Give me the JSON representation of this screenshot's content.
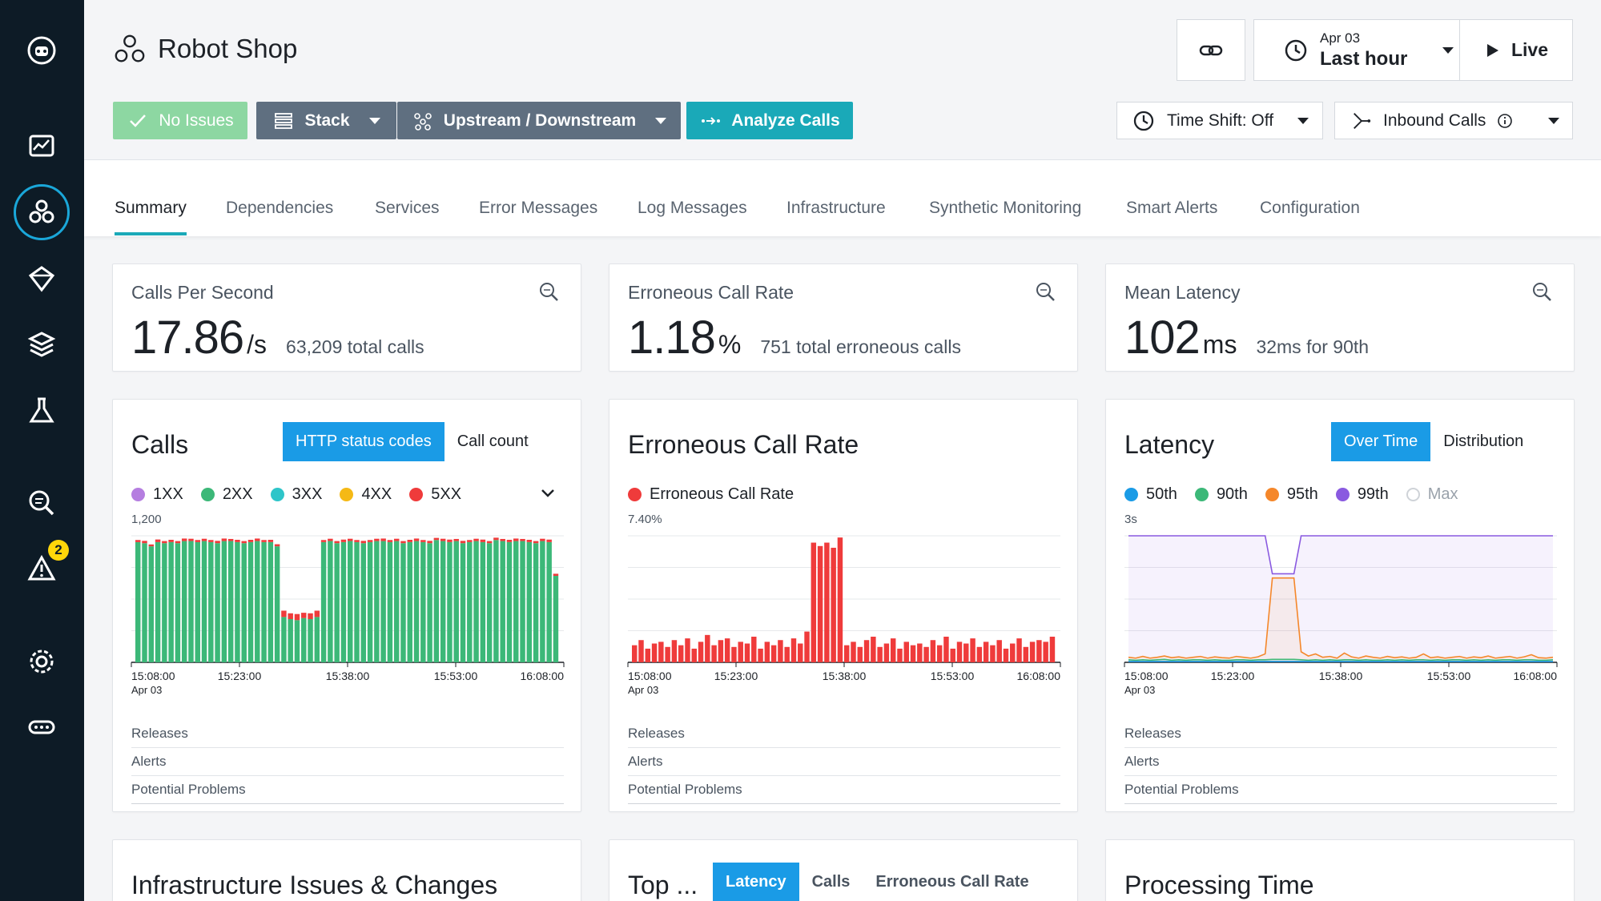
{
  "app": {
    "title": "Robot Shop"
  },
  "toolbar": {
    "no_issues": "No Issues",
    "stack": "Stack",
    "upstream_downstream": "Upstream / Downstream",
    "analyze_calls": "Analyze Calls",
    "time_date": "Apr 03",
    "time_range": "Last hour",
    "live": "Live",
    "time_shift": "Time Shift: Off",
    "inbound_calls": "Inbound Calls"
  },
  "sidebar": {
    "alerts_badge": "2"
  },
  "tabs": [
    "Summary",
    "Dependencies",
    "Services",
    "Error Messages",
    "Log Messages",
    "Infrastructure",
    "Synthetic Monitoring",
    "Smart Alerts",
    "Configuration"
  ],
  "kpis": [
    {
      "title": "Calls Per Second",
      "value": "17.86",
      "unit": "/s",
      "sub": "63,209 total calls"
    },
    {
      "title": "Erroneous Call Rate",
      "value": "1.18",
      "unit": "%",
      "sub": "751 total erroneous calls"
    },
    {
      "title": "Mean Latency",
      "value": "102",
      "unit": "ms",
      "sub": "32ms for 90th"
    }
  ],
  "cards": {
    "calls": {
      "title": "Calls",
      "seg_on": "HTTP status codes",
      "seg_off": "Call count",
      "legend": [
        {
          "label": "1XX",
          "color": "#b57ee0"
        },
        {
          "label": "2XX",
          "color": "#3cb878"
        },
        {
          "label": "3XX",
          "color": "#2ec5c9"
        },
        {
          "label": "4XX",
          "color": "#f5b915"
        },
        {
          "label": "5XX",
          "color": "#ef3b3b"
        }
      ]
    },
    "error": {
      "title": "Erroneous Call Rate",
      "legend": [
        {
          "label": "Erroneous Call Rate",
          "color": "#ef3b3b"
        }
      ]
    },
    "latency": {
      "title": "Latency",
      "seg_on": "Over Time",
      "seg_off": "Distribution",
      "legend": [
        {
          "label": "50th",
          "color": "#1a9be6"
        },
        {
          "label": "90th",
          "color": "#3cb878"
        },
        {
          "label": "95th",
          "color": "#f5872a"
        },
        {
          "label": "99th",
          "color": "#8a5ae0"
        },
        {
          "label": "Max",
          "color": "#cfd3d8"
        }
      ]
    }
  },
  "row_labels": [
    "Releases",
    "Alerts",
    "Potential Problems"
  ],
  "bottom": {
    "infra_title": "Infrastructure Issues & Changes",
    "top_title": "Top ...",
    "top_seg": [
      "Latency",
      "Calls",
      "Erroneous Call Rate"
    ],
    "processing_title": "Processing Time"
  },
  "chart_data": [
    {
      "type": "bar",
      "title": "Calls",
      "ylabel_top": "1,200",
      "x_ticks": [
        "15:08:00",
        "15:23:00",
        "15:38:00",
        "15:53:00",
        "16:08:00"
      ],
      "x_date": "Apr 03",
      "ylim": [
        0,
        1200
      ],
      "series": [
        {
          "name": "2XX",
          "values": [
            1140,
            1130,
            1100,
            1140,
            1130,
            1140,
            1130,
            1150,
            1150,
            1140,
            1150,
            1140,
            1130,
            1150,
            1150,
            1140,
            1130,
            1140,
            1150,
            1140,
            1140,
            1100,
            430,
            410,
            400,
            420,
            410,
            430,
            1140,
            1150,
            1130,
            1140,
            1150,
            1140,
            1130,
            1140,
            1150,
            1150,
            1140,
            1150,
            1130,
            1140,
            1150,
            1140,
            1130,
            1160,
            1150,
            1140,
            1150,
            1130,
            1140,
            1150,
            1140,
            1130,
            1160,
            1150,
            1140,
            1150,
            1150,
            1140,
            1130,
            1150,
            1140,
            820
          ]
        },
        {
          "name": "5XX",
          "values": [
            20,
            22,
            18,
            25,
            20,
            22,
            20,
            24,
            22,
            20,
            22,
            20,
            22,
            24,
            20,
            22,
            20,
            22,
            24,
            20,
            22,
            20,
            60,
            55,
            58,
            50,
            55,
            60,
            20,
            22,
            20,
            24,
            22,
            20,
            22,
            20,
            22,
            24,
            20,
            22,
            20,
            22,
            24,
            20,
            22,
            20,
            22,
            24,
            20,
            22,
            20,
            22,
            24,
            20,
            22,
            20,
            22,
            24,
            20,
            22,
            20,
            22,
            24,
            20
          ]
        }
      ]
    },
    {
      "type": "bar",
      "title": "Erroneous Call Rate",
      "ylabel_top": "7.40%",
      "x_ticks": [
        "15:08:00",
        "15:23:00",
        "15:38:00",
        "15:53:00",
        "16:08:00"
      ],
      "x_date": "Apr 03",
      "ylim": [
        0,
        7.4
      ],
      "series": [
        {
          "name": "Erroneous Call Rate",
          "values": [
            1.0,
            1.3,
            0.8,
            1.1,
            1.2,
            0.9,
            1.3,
            1.0,
            1.4,
            0.8,
            1.2,
            1.6,
            1.0,
            1.3,
            1.4,
            0.9,
            1.2,
            1.1,
            1.5,
            0.8,
            1.2,
            1.0,
            1.3,
            0.9,
            1.4,
            1.1,
            1.8,
            7.0,
            6.8,
            7.0,
            6.7,
            7.3,
            1.0,
            1.2,
            0.9,
            1.3,
            1.5,
            0.9,
            1.1,
            1.4,
            0.8,
            1.2,
            1.0,
            1.1,
            0.9,
            1.3,
            1.0,
            1.5,
            0.8,
            1.2,
            1.1,
            1.4,
            0.9,
            1.2,
            1.0,
            1.3,
            0.8,
            1.1,
            1.4,
            0.9,
            1.2,
            1.3,
            1.2,
            1.5
          ]
        }
      ]
    },
    {
      "type": "line",
      "title": "Latency",
      "ylabel_top": "3s",
      "x_ticks": [
        "15:08:00",
        "15:23:00",
        "15:38:00",
        "15:53:00",
        "16:08:00"
      ],
      "x_date": "Apr 03",
      "ylim": [
        0,
        3
      ],
      "series": [
        {
          "name": "99th",
          "values": [
            3.0,
            3.0,
            3.0,
            3.0,
            3.0,
            3.0,
            3.0,
            3.0,
            3.0,
            3.0,
            3.0,
            3.0,
            3.0,
            3.0,
            3.0,
            3.0,
            3.0,
            3.0,
            3.0,
            3.0,
            2.1,
            2.1,
            2.1,
            2.1,
            3.0,
            3.0,
            3.0,
            3.0,
            3.0,
            3.0,
            3.0,
            3.0,
            3.0,
            3.0,
            3.0,
            3.0,
            3.0,
            3.0,
            3.0,
            3.0,
            3.0,
            3.0,
            3.0,
            3.0,
            3.0,
            3.0,
            3.0,
            3.0,
            3.0,
            3.0,
            3.0,
            3.0,
            3.0,
            3.0,
            3.0,
            3.0,
            3.0,
            3.0,
            3.0,
            3.0
          ]
        },
        {
          "name": "95th",
          "values": [
            0.12,
            0.1,
            0.14,
            0.1,
            0.12,
            0.15,
            0.11,
            0.13,
            0.1,
            0.12,
            0.14,
            0.1,
            0.13,
            0.11,
            0.1,
            0.14,
            0.12,
            0.1,
            0.13,
            0.2,
            2.0,
            2.0,
            2.0,
            2.0,
            0.25,
            0.15,
            0.2,
            0.12,
            0.14,
            0.1,
            0.22,
            0.13,
            0.1,
            0.15,
            0.12,
            0.1,
            0.14,
            0.11,
            0.13,
            0.1,
            0.12,
            0.2,
            0.11,
            0.13,
            0.1,
            0.12,
            0.14,
            0.1,
            0.13,
            0.11,
            0.15,
            0.1,
            0.12,
            0.14,
            0.1,
            0.13,
            0.18,
            0.11,
            0.1,
            0.12
          ]
        },
        {
          "name": "90th",
          "values": [
            0.06,
            0.05,
            0.06,
            0.05,
            0.06,
            0.07,
            0.05,
            0.06,
            0.05,
            0.06,
            0.06,
            0.05,
            0.06,
            0.05,
            0.05,
            0.06,
            0.06,
            0.05,
            0.06,
            0.06,
            0.07,
            0.07,
            0.07,
            0.07,
            0.06,
            0.05,
            0.06,
            0.05,
            0.06,
            0.05,
            0.06,
            0.06,
            0.05,
            0.06,
            0.05,
            0.05,
            0.06,
            0.05,
            0.06,
            0.05,
            0.06,
            0.06,
            0.05,
            0.06,
            0.05,
            0.06,
            0.06,
            0.05,
            0.06,
            0.05,
            0.06,
            0.05,
            0.06,
            0.06,
            0.05,
            0.06,
            0.06,
            0.05,
            0.05,
            0.06
          ]
        },
        {
          "name": "50th",
          "values": [
            0.02,
            0.02,
            0.02,
            0.02,
            0.02,
            0.02,
            0.02,
            0.02,
            0.02,
            0.02,
            0.02,
            0.02,
            0.02,
            0.02,
            0.02,
            0.02,
            0.02,
            0.02,
            0.02,
            0.02,
            0.02,
            0.02,
            0.02,
            0.02,
            0.02,
            0.02,
            0.02,
            0.02,
            0.02,
            0.02,
            0.02,
            0.02,
            0.02,
            0.02,
            0.02,
            0.02,
            0.02,
            0.02,
            0.02,
            0.02,
            0.02,
            0.02,
            0.02,
            0.02,
            0.02,
            0.02,
            0.02,
            0.02,
            0.02,
            0.02,
            0.02,
            0.02,
            0.02,
            0.02,
            0.02,
            0.02,
            0.02,
            0.02,
            0.02,
            0.02
          ]
        }
      ]
    }
  ]
}
